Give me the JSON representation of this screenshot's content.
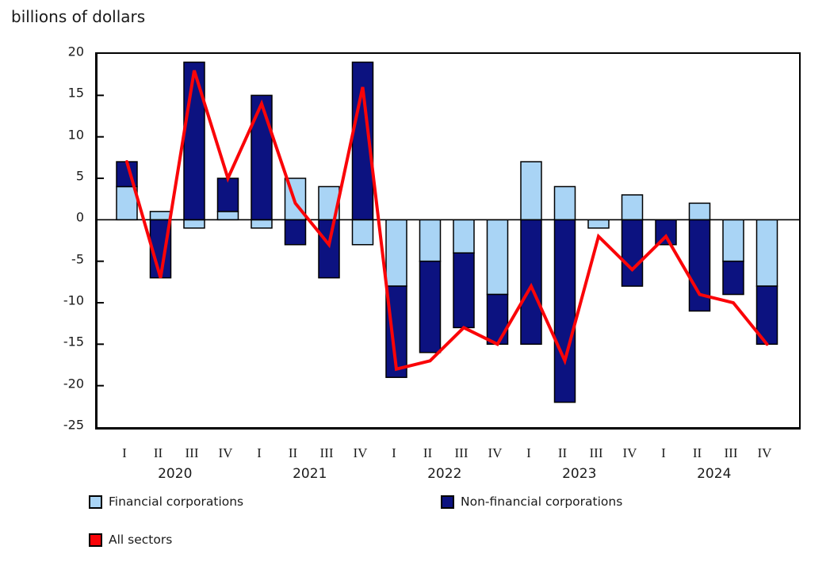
{
  "chart_data": {
    "type": "bar",
    "title": "billions of dollars",
    "ylabel": "billions of dollars",
    "xlabel": "",
    "ylim": [
      -25,
      20
    ],
    "yticks": [
      20,
      15,
      10,
      5,
      0,
      -5,
      -10,
      -15,
      -20,
      -25
    ],
    "grid": false,
    "legend_position": "bottom-left",
    "bar_outline_color": "#000000",
    "zero_line": true,
    "x_groups": [
      {
        "year": "2020",
        "quarters": [
          "I",
          "II",
          "III",
          "IV"
        ]
      },
      {
        "year": "2021",
        "quarters": [
          "I",
          "II",
          "III",
          "IV"
        ]
      },
      {
        "year": "2022",
        "quarters": [
          "I",
          "II",
          "III",
          "IV"
        ]
      },
      {
        "year": "2023",
        "quarters": [
          "I",
          "II",
          "III",
          "IV"
        ]
      },
      {
        "year": "2024",
        "quarters": [
          "I",
          "II",
          "III",
          "IV"
        ]
      }
    ],
    "series": [
      {
        "name": "Financial corporations",
        "kind": "bar",
        "color": "#a9d4f5",
        "values": [
          4,
          1,
          -1,
          1,
          -1,
          5,
          4,
          -3,
          -8,
          -5,
          -4,
          -9,
          7,
          4,
          -1,
          3,
          0,
          2,
          -5,
          -8
        ]
      },
      {
        "name": "Non-financial corporations",
        "kind": "bar",
        "color": "#0c1280",
        "values": [
          3,
          -7,
          19,
          4,
          15,
          -3,
          -7,
          19,
          -11,
          -11,
          -9,
          -6,
          -15,
          -22,
          0,
          -8,
          -3,
          -11,
          -4,
          -7
        ]
      },
      {
        "name": "All sectors",
        "kind": "line",
        "color": "#fa0408",
        "values": [
          7,
          -7,
          18,
          5,
          14,
          2,
          -3,
          16,
          -18,
          -17,
          -13,
          -15,
          -8,
          -17,
          -2,
          -6,
          -2,
          -9,
          -10,
          -15
        ]
      }
    ]
  }
}
